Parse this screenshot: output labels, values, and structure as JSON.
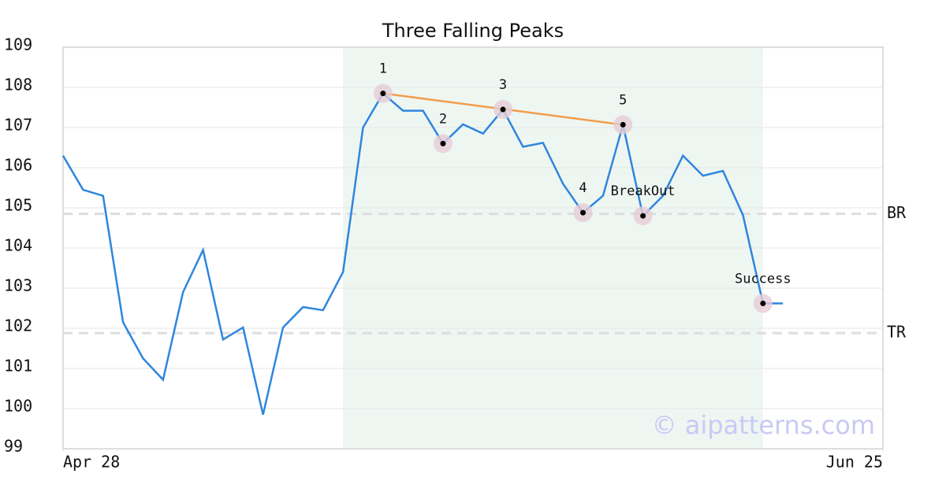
{
  "chart_data": {
    "type": "line",
    "title": "Three Falling Peaks",
    "x": [
      0,
      1,
      2,
      3,
      4,
      5,
      6,
      7,
      8,
      9,
      10,
      11,
      12,
      13,
      14,
      15,
      16,
      17,
      18,
      19,
      20,
      21,
      22,
      23,
      24,
      25,
      26,
      27,
      28,
      29,
      30,
      31,
      32,
      33,
      34,
      35,
      36
    ],
    "values": [
      106.3,
      105.45,
      105.3,
      102.15,
      101.25,
      100.72,
      102.9,
      103.95,
      101.72,
      102.02,
      99.85,
      102.02,
      102.53,
      102.45,
      103.4,
      107.0,
      107.85,
      107.42,
      107.42,
      106.6,
      107.08,
      106.85,
      107.45,
      106.52,
      106.62,
      105.6,
      104.88,
      105.3,
      107.07,
      104.8,
      105.3,
      106.3,
      105.8,
      105.92,
      104.82,
      102.62,
      102.62
    ],
    "color": "#2e86de",
    "xlim": [
      0,
      41
    ],
    "xticks": [
      {
        "value": 0,
        "label": "Apr 28"
      },
      {
        "value": 41,
        "label": "Jun 25"
      }
    ],
    "ylim": [
      99,
      109
    ],
    "yticks": [
      99,
      100,
      101,
      102,
      103,
      104,
      105,
      106,
      107,
      108,
      109
    ],
    "grid": true,
    "highlight_range": [
      14,
      35
    ],
    "highlight_color": "#eef6f2",
    "annotations": [
      {
        "label": "1",
        "x": 16,
        "y": 107.85
      },
      {
        "label": "2",
        "x": 19,
        "y": 106.6
      },
      {
        "label": "3",
        "x": 22,
        "y": 107.45
      },
      {
        "label": "4",
        "x": 26,
        "y": 104.88
      },
      {
        "label": "5",
        "x": 28,
        "y": 107.07
      },
      {
        "label": "BreakOut",
        "x": 29,
        "y": 104.8
      },
      {
        "label": "Success",
        "x": 35,
        "y": 102.62
      }
    ],
    "trendline": {
      "x": [
        16,
        28
      ],
      "y": [
        107.85,
        107.07
      ],
      "color": "#f39c4a"
    },
    "levels": [
      {
        "label": "BR",
        "value": 104.85
      },
      {
        "label": "TR",
        "value": 101.88
      }
    ],
    "watermark": "© aipatterns.com"
  }
}
